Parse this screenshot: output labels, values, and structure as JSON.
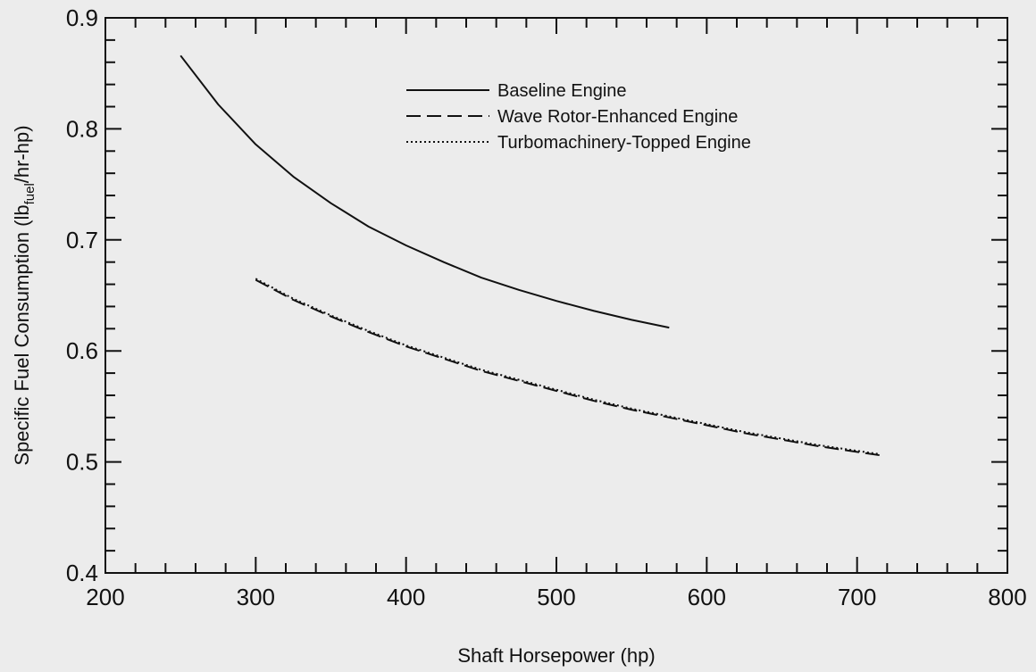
{
  "chart_data": {
    "type": "line",
    "title": "",
    "xlabel": "Shaft Horsepower (hp)",
    "ylabel": {
      "prefix": "Specific Fuel Consumption (lb",
      "subscript": "fuel",
      "suffix": "/hr-hp)"
    },
    "xlim": [
      200,
      800
    ],
    "ylim": [
      0.4,
      0.9
    ],
    "xticks": [
      "200",
      "300",
      "400",
      "500",
      "600",
      "700",
      "800"
    ],
    "yticks": [
      "0.4",
      "0.5",
      "0.6",
      "0.7",
      "0.8",
      "0.9"
    ],
    "grid": false,
    "legend_position": "top-center",
    "series": [
      {
        "name": "Baseline Engine",
        "style": "solid",
        "x": [
          250,
          275,
          300,
          325,
          350,
          375,
          400,
          425,
          450,
          475,
          500,
          525,
          550,
          575
        ],
        "y": [
          0.866,
          0.822,
          0.786,
          0.757,
          0.733,
          0.712,
          0.695,
          0.68,
          0.666,
          0.655,
          0.645,
          0.636,
          0.628,
          0.621
        ]
      },
      {
        "name": "Wave Rotor-Enhanced Engine",
        "style": "dashed",
        "x": [
          300,
          325,
          350,
          375,
          400,
          425,
          450,
          475,
          500,
          525,
          550,
          575,
          600,
          625,
          650,
          675,
          700,
          715
        ],
        "y": [
          0.664,
          0.646,
          0.631,
          0.617,
          0.604,
          0.593,
          0.582,
          0.573,
          0.564,
          0.555,
          0.547,
          0.54,
          0.533,
          0.526,
          0.52,
          0.514,
          0.509,
          0.506
        ]
      },
      {
        "name": "Turbomachinery-Topped Engine",
        "style": "dotted",
        "x": [
          300,
          325,
          350,
          375,
          400,
          425,
          450,
          475,
          500,
          525,
          550,
          575,
          600,
          625,
          650,
          675,
          700,
          715
        ],
        "y": [
          0.665,
          0.647,
          0.632,
          0.618,
          0.605,
          0.594,
          0.583,
          0.574,
          0.565,
          0.556,
          0.548,
          0.541,
          0.534,
          0.527,
          0.521,
          0.515,
          0.51,
          0.507
        ]
      }
    ]
  }
}
